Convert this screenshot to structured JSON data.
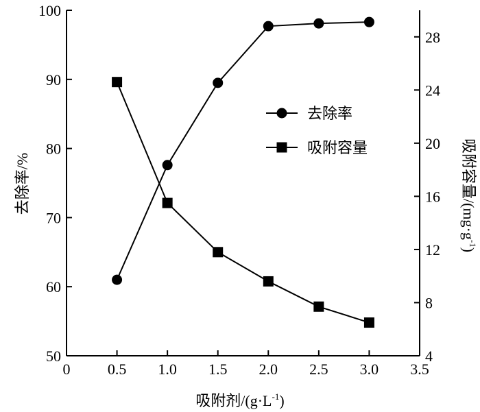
{
  "chart_data": {
    "type": "line",
    "x": [
      0.5,
      1.0,
      1.5,
      2.0,
      2.5,
      3.0
    ],
    "xlabel": "吸附剂/(g·L",
    "xlabel_sup": "-1",
    "xlabel_end": ")",
    "ylabel_left": "去除率/%",
    "ylabel_right": "吸附容量/(mg·g",
    "ylabel_right_sup": "-1",
    "ylabel_right_end": ")",
    "xlim": [
      0,
      3.5
    ],
    "ylim_left": [
      50,
      100
    ],
    "ylim_right": [
      4,
      30
    ],
    "x_ticks": [
      "0",
      "0.5",
      "1.0",
      "1.5",
      "2.0",
      "2.5",
      "3.0",
      "3.5"
    ],
    "y_left_ticks": [
      "50",
      "60",
      "70",
      "80",
      "90",
      "100"
    ],
    "y_right_ticks": [
      "4",
      "8",
      "12",
      "16",
      "20",
      "24",
      "28"
    ],
    "grid": false,
    "legend_position": "center-right",
    "series": [
      {
        "name": "去除率",
        "axis": "left",
        "marker": "circle",
        "values": [
          61.0,
          77.6,
          89.5,
          97.7,
          98.1,
          98.3
        ]
      },
      {
        "name": "吸附容量",
        "axis": "right",
        "marker": "square",
        "values": [
          24.6,
          15.5,
          11.8,
          9.6,
          7.7,
          6.5
        ]
      }
    ]
  }
}
